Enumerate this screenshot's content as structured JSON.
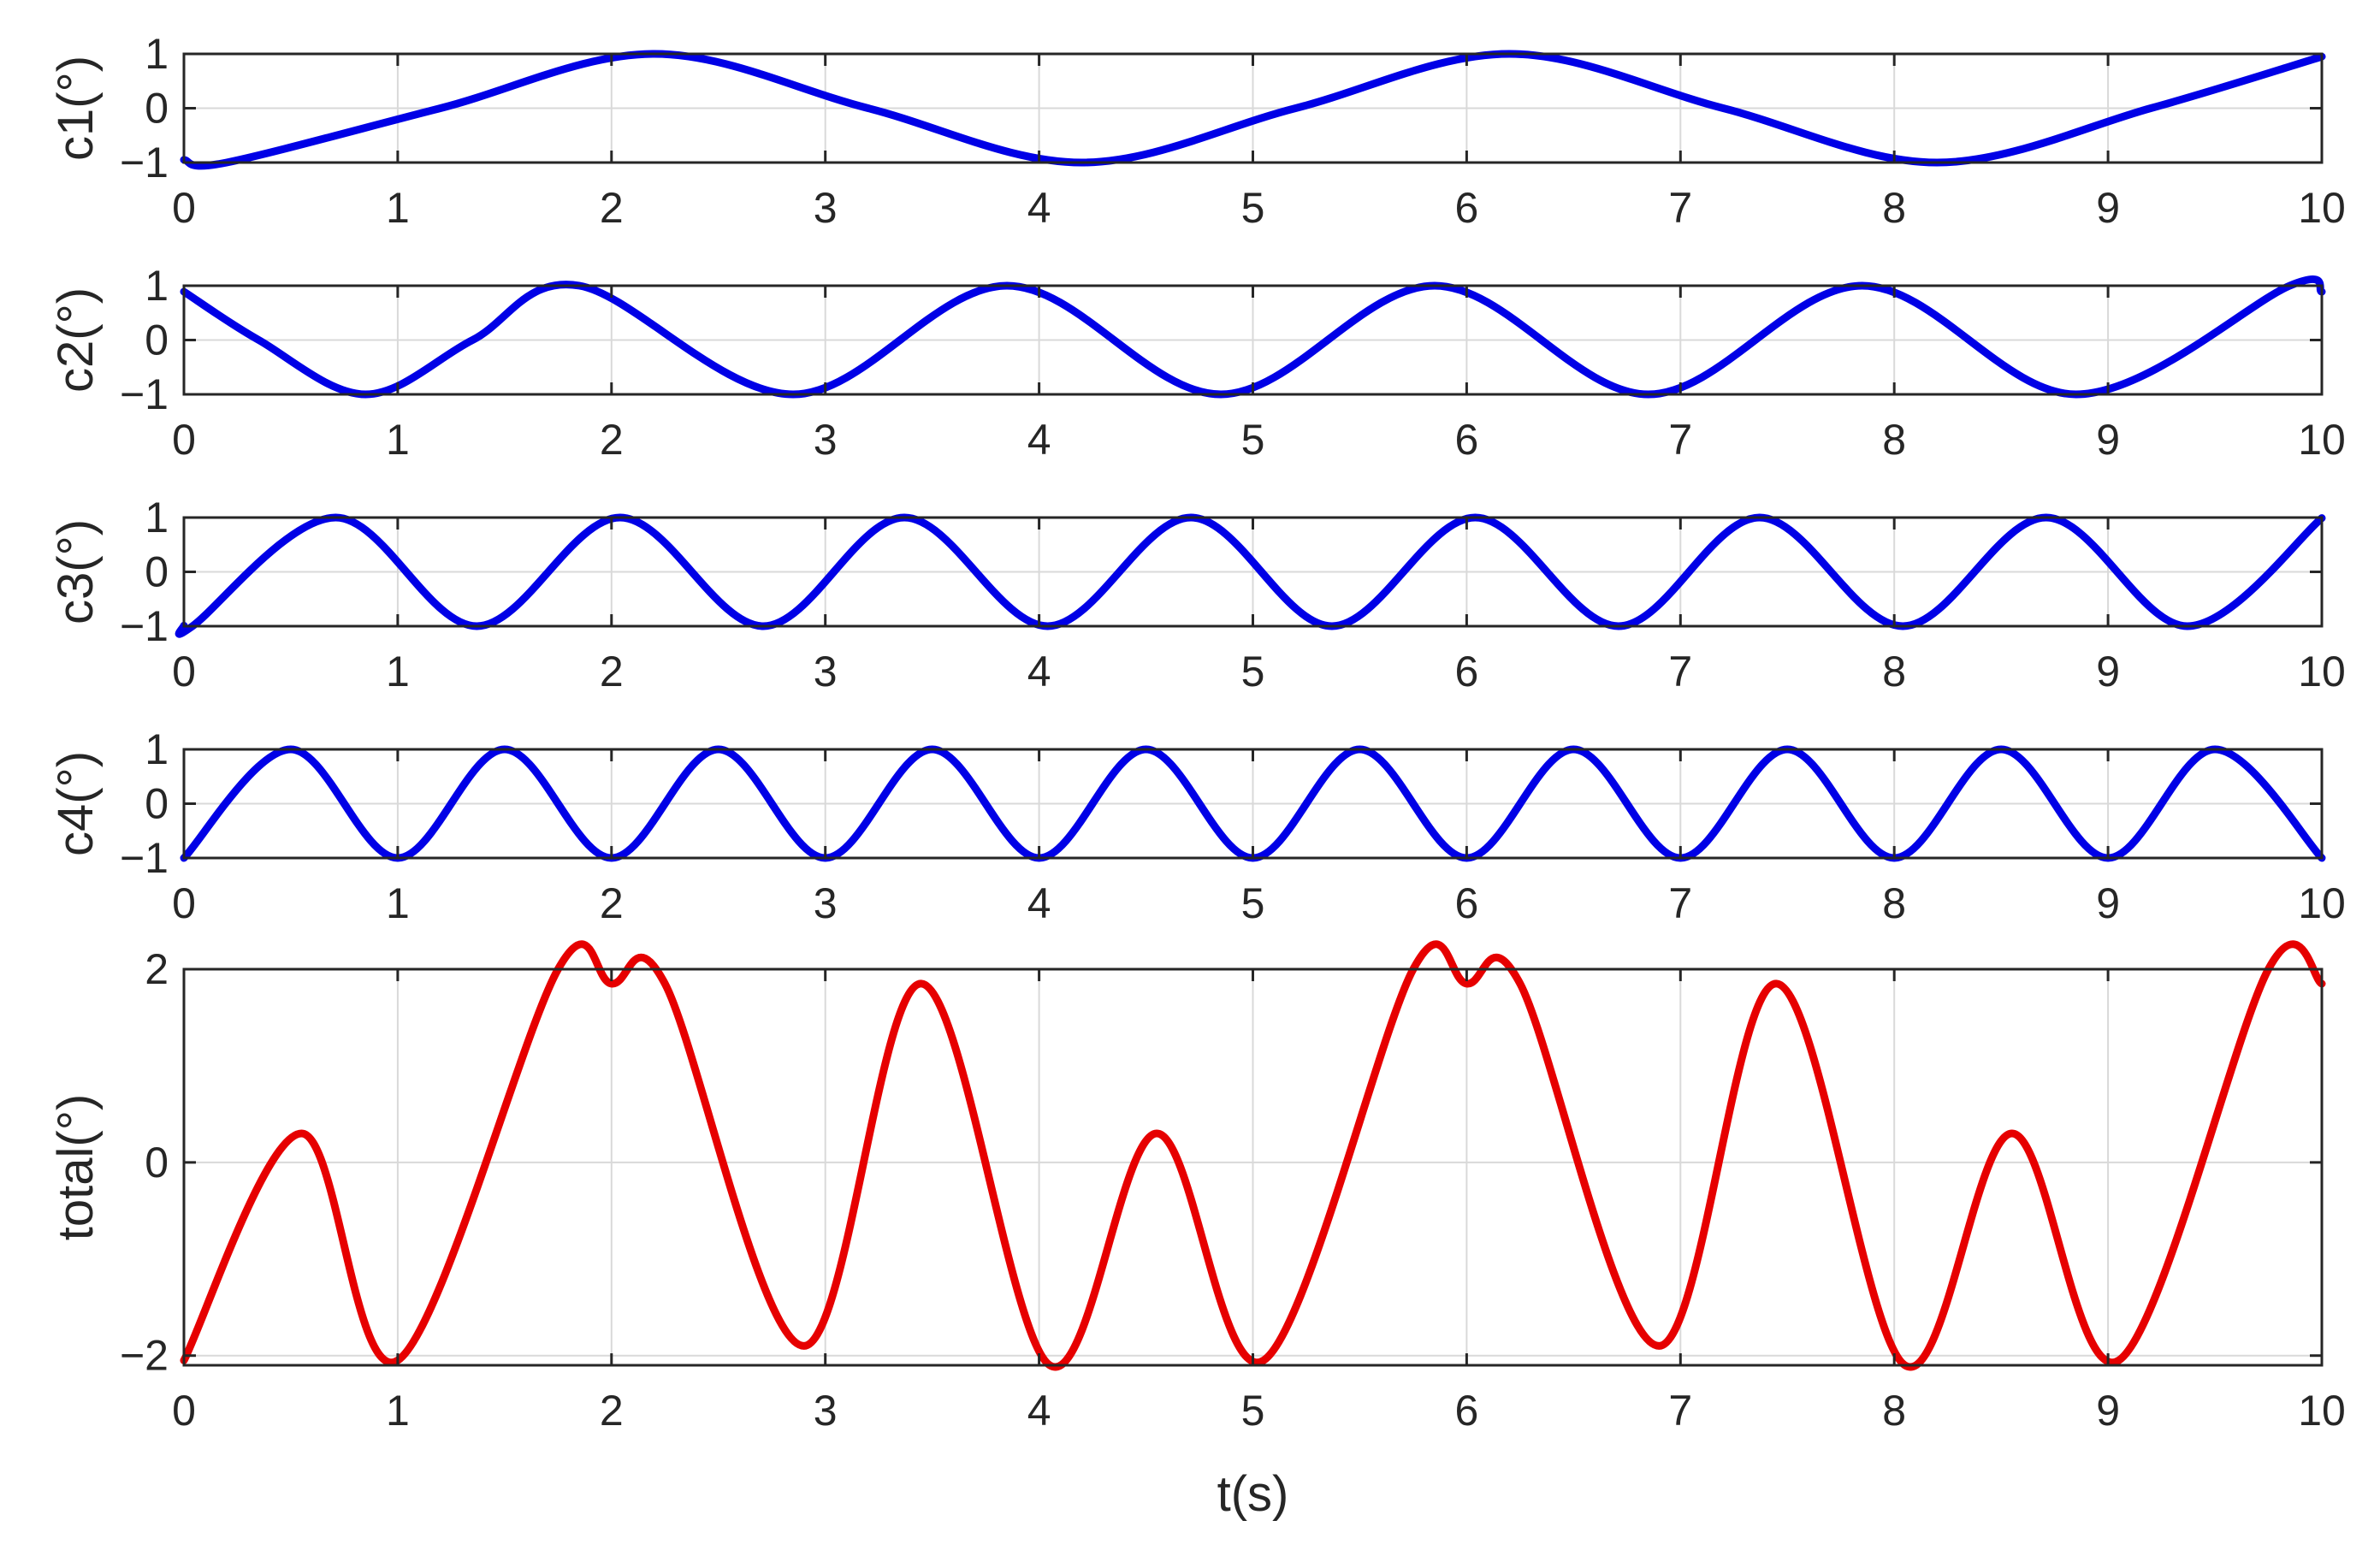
{
  "chart_data": [
    {
      "type": "line",
      "ylabel": "c1(°)",
      "xlabel": "",
      "xlim": [
        0,
        10
      ],
      "ylim": [
        -1,
        1
      ],
      "xticks": [
        0,
        1,
        2,
        3,
        4,
        5,
        6,
        7,
        8,
        9,
        10
      ],
      "yticks": [
        -1,
        0,
        1
      ],
      "ytick_labels": [
        "−1",
        "0",
        "1"
      ],
      "grid": true,
      "color": "#0000e6",
      "function": "-cos(2*pi*(t-0.2)/4)",
      "x": [
        0,
        0.2,
        1.2,
        2.2,
        3.2,
        4.2,
        5.2,
        6.2,
        7.2,
        8.2,
        9.2,
        10
      ],
      "y": [
        -0.95,
        -1,
        0,
        1,
        0,
        -1,
        0,
        1,
        0,
        -1,
        0,
        0.95
      ]
    },
    {
      "type": "line",
      "ylabel": "c2(°)",
      "xlabel": "",
      "xlim": [
        0,
        10
      ],
      "ylim": [
        -1,
        1
      ],
      "xticks": [
        0,
        1,
        2,
        3,
        4,
        5,
        6,
        7,
        8,
        9,
        10
      ],
      "yticks": [
        -1,
        0,
        1
      ],
      "ytick_labels": [
        "−1",
        "0",
        "1"
      ],
      "grid": true,
      "color": "#0000e6",
      "function": "cos(2*pi*(t+0.15)/2)",
      "x": [
        0,
        0.35,
        0.85,
        1.35,
        1.85,
        2.85,
        3.85,
        4.85,
        5.85,
        6.85,
        7.85,
        8.85,
        9.85,
        10
      ],
      "y": [
        0.89,
        0,
        -1,
        0,
        1,
        -1,
        1,
        -1,
        1,
        -1,
        1,
        -1,
        1,
        0.89
      ]
    },
    {
      "type": "line",
      "ylabel": "c3(°)",
      "xlabel": "",
      "xlim": [
        0,
        10
      ],
      "ylim": [
        -1,
        1
      ],
      "xticks": [
        0,
        1,
        2,
        3,
        4,
        5,
        6,
        7,
        8,
        9,
        10
      ],
      "yticks": [
        -1,
        0,
        1
      ],
      "ytick_labels": [
        "−1",
        "0",
        "1"
      ],
      "grid": true,
      "color": "#0000e6",
      "function": "-cos(2*pi*(t-0.04)/(4/3))",
      "x": [
        0,
        0.04,
        0.71,
        1.37,
        2.04,
        2.71,
        3.37,
        4.04,
        4.71,
        5.37,
        6.04,
        6.71,
        7.37,
        8.04,
        8.71,
        9.37,
        10
      ],
      "y": [
        -0.99,
        -1,
        1,
        -1,
        1,
        -1,
        1,
        -1,
        1,
        -1,
        1,
        -1,
        1,
        -1,
        1,
        -1,
        0.99
      ]
    },
    {
      "type": "line",
      "ylabel": "c4(°)",
      "xlabel": "",
      "xlim": [
        0,
        10
      ],
      "ylim": [
        -1,
        1
      ],
      "xticks": [
        0,
        1,
        2,
        3,
        4,
        5,
        6,
        7,
        8,
        9,
        10
      ],
      "yticks": [
        -1,
        0,
        1
      ],
      "ytick_labels": [
        "−1",
        "0",
        "1"
      ],
      "grid": true,
      "color": "#0000e6",
      "function": "-cos(2*pi*t)",
      "x": [
        0,
        0.5,
        1,
        1.5,
        2,
        2.5,
        3,
        3.5,
        4,
        4.5,
        5,
        5.5,
        6,
        6.5,
        7,
        7.5,
        8,
        8.5,
        9,
        9.5,
        10
      ],
      "y": [
        -1,
        1,
        -1,
        1,
        -1,
        1,
        -1,
        1,
        -1,
        1,
        -1,
        1,
        -1,
        1,
        -1,
        1,
        -1,
        1,
        -1,
        1,
        -1
      ]
    },
    {
      "type": "line",
      "ylabel": "total(°)",
      "xlabel": "t(s)",
      "xlim": [
        0,
        10
      ],
      "ylim": [
        -2.1,
        2
      ],
      "xticks": [
        0,
        1,
        2,
        3,
        4,
        5,
        6,
        7,
        8,
        9,
        10
      ],
      "yticks": [
        -2,
        0,
        2
      ],
      "ytick_labels": [
        "−2",
        "0",
        "2"
      ],
      "grid": true,
      "color": "#e60000",
      "function": "c1+c2+c3+c4 scaled so the peak is 2",
      "x": [
        0,
        0.55,
        1.0,
        1.75,
        2.0,
        2.25,
        2.9,
        3.45,
        4.05,
        4.55,
        5.05,
        5.75,
        6.0,
        6.25,
        6.9,
        7.45,
        8.05,
        8.55,
        9.05,
        9.75,
        10
      ],
      "y": [
        -2.05,
        0.3,
        -2.05,
        2.0,
        1.85,
        1.85,
        -1.9,
        1.85,
        -2.1,
        0.3,
        -2.05,
        2.0,
        1.85,
        1.85,
        -1.9,
        1.85,
        -2.1,
        0.3,
        -2.05,
        2.0,
        1.85
      ]
    }
  ]
}
